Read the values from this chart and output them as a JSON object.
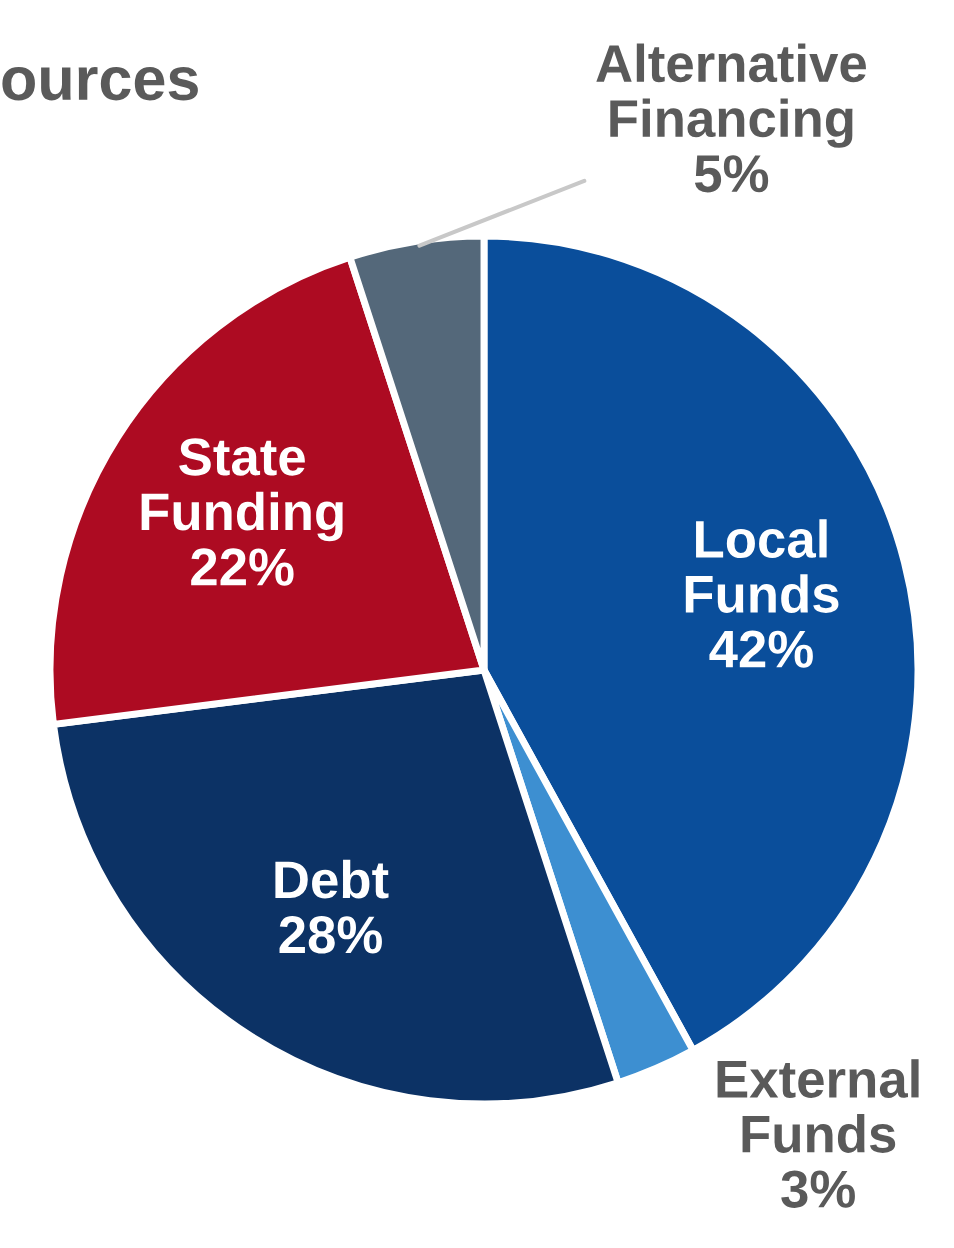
{
  "chart_data": {
    "type": "pie",
    "title": "ources",
    "categories": [
      "Local\nFunds",
      "External\nFunds",
      "Debt",
      "State\nFunding",
      "Alternative\nFinancing"
    ],
    "values": [
      42,
      3,
      28,
      22,
      5
    ],
    "value_labels": [
      "42%",
      "3%",
      "28%",
      "22%",
      "5%"
    ],
    "colors": [
      "#0a4e9b",
      "#3d8fd1",
      "#0c3265",
      "#ad0b22",
      "#54687a"
    ]
  }
}
